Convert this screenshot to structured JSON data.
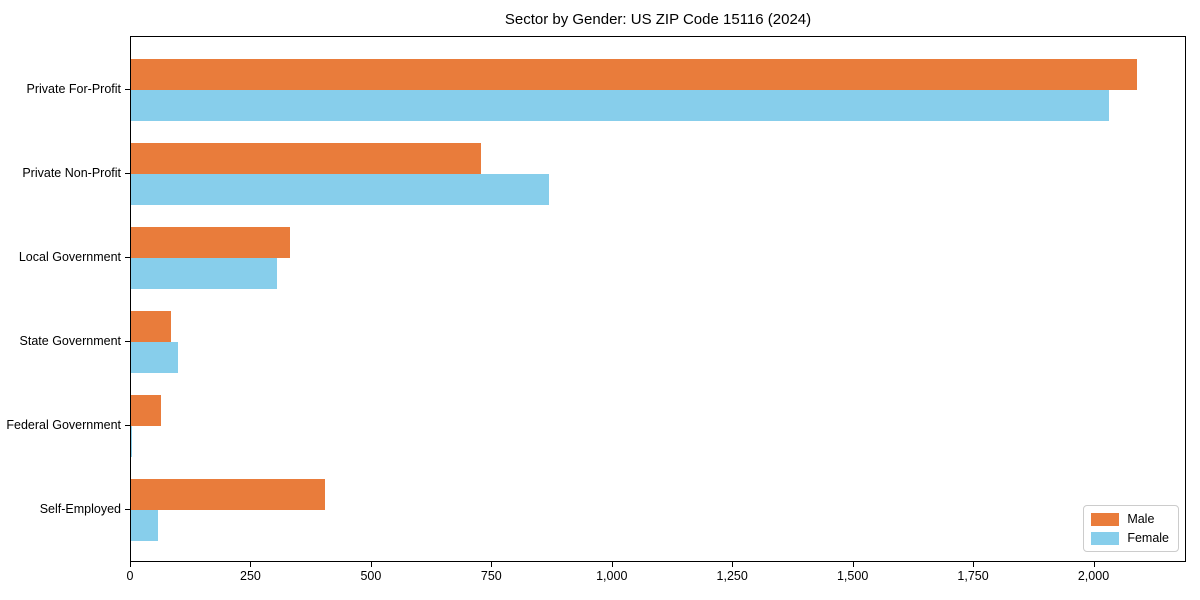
{
  "chart_data": {
    "type": "bar",
    "orientation": "horizontal",
    "title": "Sector by Gender: US ZIP Code 15116 (2024)",
    "categories": [
      "Private For-Profit",
      "Private Non-Profit",
      "Local Government",
      "State Government",
      "Federal Government",
      "Self-Employed"
    ],
    "series": [
      {
        "name": "Male",
        "color": "#E97C3B",
        "values": [
          2088,
          727,
          330,
          82,
          62,
          402
        ]
      },
      {
        "name": "Female",
        "color": "#87CEEB",
        "values": [
          2030,
          868,
          303,
          97,
          2,
          56
        ]
      }
    ],
    "xlabel": "",
    "ylabel": "",
    "xlim": [
      0,
      2192
    ],
    "x_ticks": [
      0,
      250,
      500,
      750,
      1000,
      1250,
      1500,
      1750,
      2000
    ],
    "x_tick_labels": [
      "0",
      "250",
      "500",
      "750",
      "1,000",
      "1,250",
      "1,500",
      "1,750",
      "2,000"
    ],
    "legend": {
      "position": "lower right",
      "entries": [
        "Male",
        "Female"
      ]
    },
    "grid": false,
    "axis_color": "#000000",
    "background": "#ffffff"
  }
}
